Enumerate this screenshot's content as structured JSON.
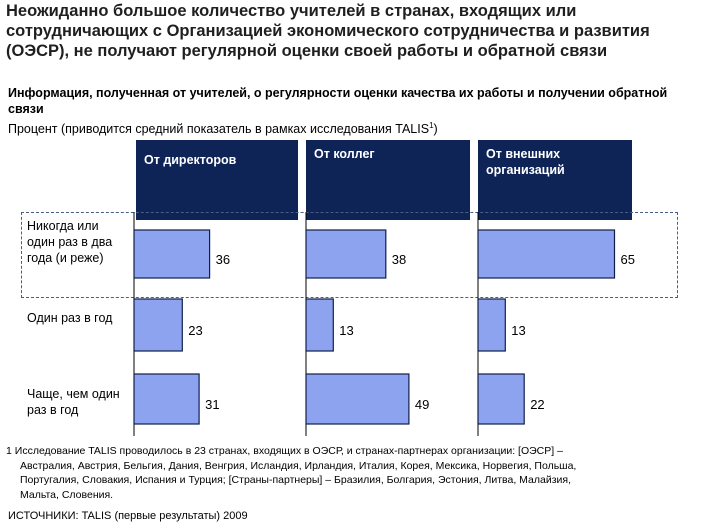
{
  "title": "Неожиданно большое количество учителей в странах, входящих или сотрудничающих с Организацией экономического сотрудничества и развития (ОЭСР), не получают регулярной оценки своей работы и обратной связи",
  "subtitle": "Информация, полученная от учителей, о регулярности оценки качества их работы и получении обратной связи",
  "unit_text": "Процент (приводится средний показатель в рамках исследования TALIS",
  "unit_sup": "1",
  "unit_close": ")",
  "chart_data": {
    "type": "bar",
    "orientation": "horizontal",
    "title": "Информация, полученная от учителей, о регулярности оценки качества их работы и получении обратной связи",
    "ylabel": "Процент",
    "categories": [
      "Никогда или один раз в два года (и реже)",
      "Один раз в год",
      "Чаще, чем один раз в год"
    ],
    "series": [
      {
        "name": "От директоров",
        "values": [
          36,
          23,
          31
        ]
      },
      {
        "name": "От коллег",
        "values": [
          38,
          13,
          49
        ]
      },
      {
        "name": "От внешних организаций",
        "values": [
          65,
          13,
          22
        ]
      }
    ],
    "highlighted_category": "Никогда или один раз в два года (и реже)"
  },
  "columns": [
    {
      "label": "От директоров"
    },
    {
      "label": "От коллег"
    },
    {
      "label": "От внешних организаций"
    }
  ],
  "rows": [
    {
      "label": "Никогда или один раз в два года (и реже)"
    },
    {
      "label": "Один раз в год"
    },
    {
      "label": "Чаще, чем один раз в год"
    }
  ],
  "footnote": {
    "marker": "1",
    "line1": "Исследование TALIS проводилось в 23 странах, входящих в ОЭСР, и странах-партнерах организации: [ОЭСР] –",
    "line2": "Австралия, Австрия, Бельгия, Дания, Венгрия,  Исландия, Ирландия, Италия, Корея, Мексика, Норвегия, Польша,",
    "line3": "Португалия, Словакия, Испания и Турция; [Страны-партнеры] – Бразилия, Болгария, Эстония, Литва, Малайзия,",
    "line4": "Мальта, Словения."
  },
  "source": "ИСТОЧНИКИ:  TALIS (первые результаты) 2009",
  "colors": {
    "header_bg": "#0f2456",
    "bar_fill": "#8da3ef",
    "bar_stroke": "#0f1f4a"
  }
}
